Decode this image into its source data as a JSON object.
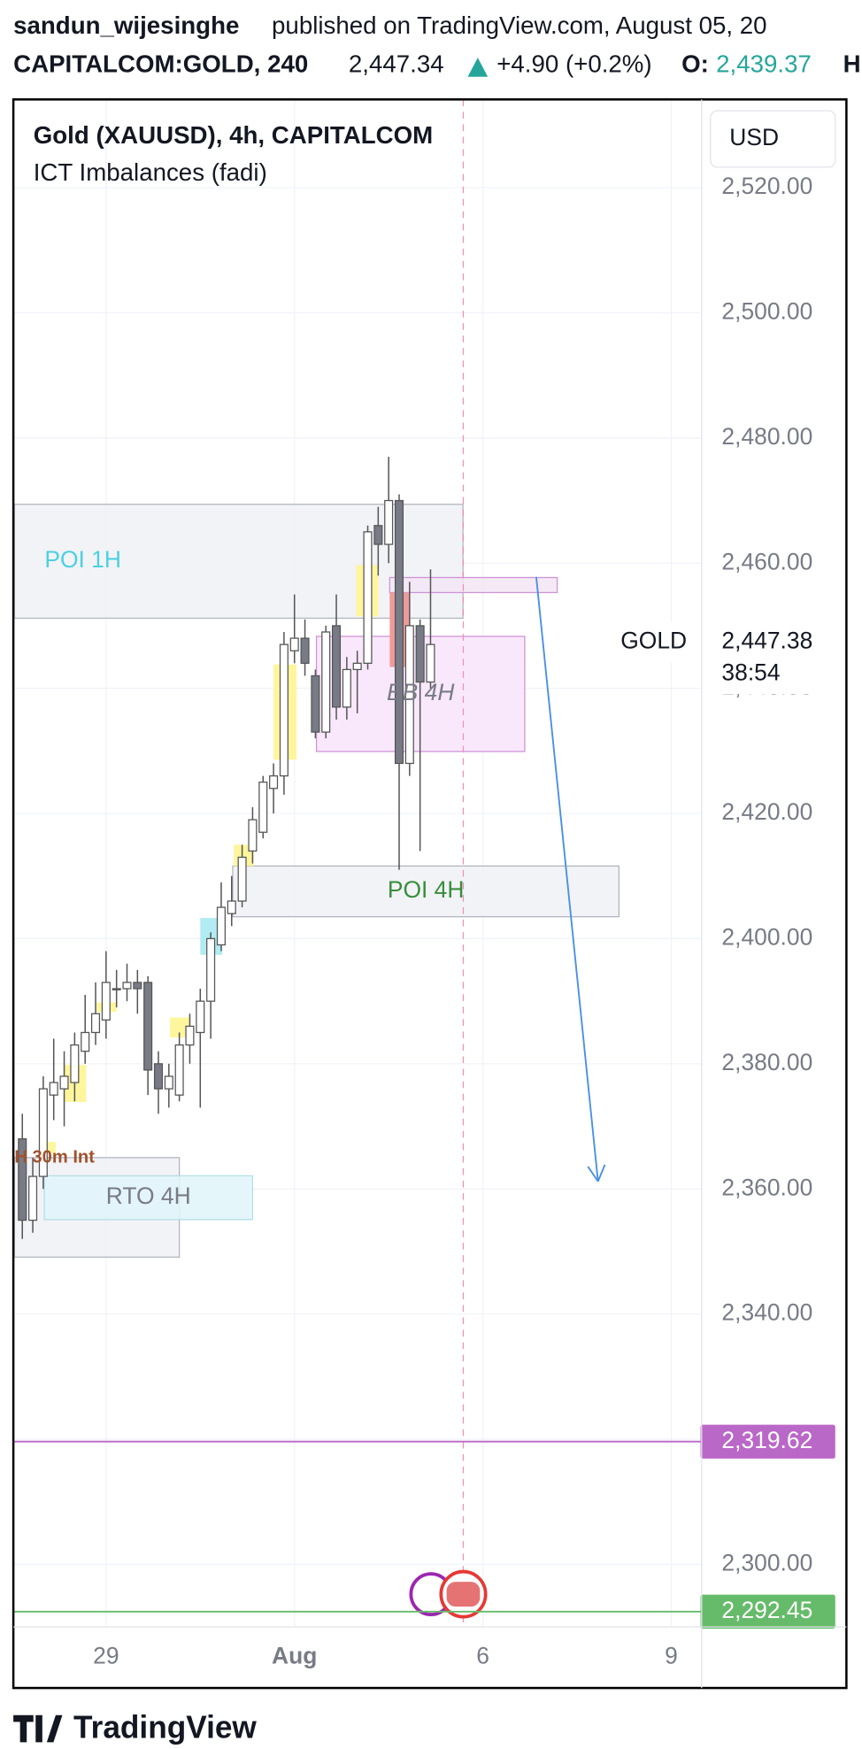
{
  "header": {
    "author": "sandun_wijesinghe",
    "published": "published on TradingView.com, August 05, 20",
    "symbol": "CAPITALCOM:GOLD, 240",
    "last": "2,447.34",
    "change": "+4.90 (+0.2%)",
    "open_label": "O:",
    "open": "2,439.37",
    "high_label": "H"
  },
  "chart_data": {
    "type": "candlestick",
    "title": "Gold (XAUUSD), 4h, CAPITALCOM",
    "subtitle": "ICT Imbalances (fadi)",
    "currency": "USD",
    "symbol_tag": "GOLD",
    "price_tag": {
      "value": 2447.38,
      "label": "2,447.38"
    },
    "countdown": "38:54",
    "open": [
      2368,
      2355,
      2362,
      2375,
      2376,
      2377,
      2382,
      2385,
      2387,
      2392,
      2392,
      2393,
      2393,
      2380,
      2376,
      2375,
      2383,
      2385,
      2390,
      2399,
      2404,
      2406,
      2414,
      2417,
      2424,
      2426,
      2446,
      2448,
      2442,
      2433,
      2450,
      2437,
      2443,
      2444,
      2466,
      2463,
      2470,
      2428,
      2450,
      2441
    ],
    "high": [
      2372,
      2365,
      2378,
      2384,
      2382,
      2385,
      2391,
      2393,
      2398,
      2395,
      2396,
      2395,
      2394,
      2382,
      2380,
      2385,
      2388,
      2392,
      2401,
      2409,
      2410,
      2415,
      2421,
      2426,
      2428,
      2449,
      2455,
      2451,
      2443,
      2450,
      2455,
      2445,
      2446,
      2466,
      2469,
      2477,
      2471,
      2457,
      2451,
      2459
    ],
    "low": [
      2352,
      2353,
      2360,
      2371,
      2370,
      2374,
      2380,
      2383,
      2384,
      2389,
      2390,
      2388,
      2375,
      2372,
      2373,
      2374,
      2380,
      2373,
      2384,
      2398,
      2402,
      2405,
      2412,
      2416,
      2420,
      2423,
      2444,
      2442,
      2432,
      2432,
      2435,
      2435,
      2436,
      2443,
      2458,
      2460,
      2411,
      2426,
      2414,
      2440
    ],
    "close": [
      2355,
      2362,
      2376,
      2377,
      2378,
      2383,
      2385,
      2388,
      2393,
      2392,
      2393,
      2392,
      2379,
      2376,
      2378,
      2383,
      2386,
      2390,
      2400,
      2405,
      2406,
      2413,
      2419,
      2425,
      2426,
      2447,
      2448,
      2444,
      2433,
      2449,
      2437,
      2443,
      2444,
      2465,
      2463,
      2470,
      2428,
      2450,
      2441,
      2447
    ],
    "up_color": "#ffffff",
    "down_color": "#787b86",
    "wick_color": "#555555",
    "xlim": [
      -0.75,
      64.9
    ],
    "xticks": [
      {
        "value": 8,
        "label": "29"
      },
      {
        "value": 26,
        "label": "Aug"
      },
      {
        "value": 44,
        "label": "6"
      },
      {
        "value": 62,
        "label": "9"
      }
    ],
    "ylim": [
      2290,
      2534.1
    ],
    "yticks": [
      {
        "value": 2300,
        "label": "2,300.00"
      },
      {
        "value": 2320,
        "label": "2,320.00"
      },
      {
        "value": 2340,
        "label": "2,340.00"
      },
      {
        "value": 2360,
        "label": "2,360.00"
      },
      {
        "value": 2380,
        "label": "2,380.00"
      },
      {
        "value": 2400,
        "label": "2,400.00"
      },
      {
        "value": 2420,
        "label": "2,420.00"
      },
      {
        "value": 2440,
        "label": "2,440.00"
      },
      {
        "value": 2460,
        "label": "2,460.00"
      },
      {
        "value": 2480,
        "label": "2,480.00"
      },
      {
        "value": 2500,
        "label": "2,500.00"
      },
      {
        "value": 2520,
        "label": "2,520.00"
      }
    ],
    "grid": true,
    "zones": [
      {
        "label": "POI 1H",
        "x": [
          -0.75,
          42.1
        ],
        "y": [
          2451.2,
          2469.4
        ],
        "fill": "#f0f1f4",
        "stroke": "#b2b5be",
        "label_color": "#4dd0e1"
      },
      {
        "x": [
          35.1,
          51.1
        ],
        "y": [
          2455.3,
          2457.7
        ],
        "fill": "#f3e5f5",
        "stroke": "#ce93d8"
      },
      {
        "label": "BB 4H",
        "x": [
          28.1,
          48
        ],
        "y": [
          2429.9,
          2448.3
        ],
        "fill": "#f8e4fa",
        "stroke": "#ce93d8",
        "label_color": "#787b86"
      },
      {
        "label": "POI 4H",
        "x": [
          20.1,
          57
        ],
        "y": [
          2403.5,
          2411.6
        ],
        "fill": "#f0f1f4",
        "stroke": "#b2b5be",
        "label_color": "#388e3c"
      },
      {
        "label": "H 30m Int",
        "x": [
          -0.75,
          15
        ],
        "y": [
          2349.1,
          2365
        ],
        "fill": "#f0f1f4",
        "stroke": "#b2b5be",
        "label_color": "#a0522d"
      },
      {
        "label": "RTO 4H",
        "x": [
          2.1,
          22
        ],
        "y": [
          2355.1,
          2362.1
        ],
        "fill": "#e0f5fa",
        "stroke": "#b2dfe8",
        "label_color": "#787b86"
      }
    ],
    "imbalances": [
      {
        "x": [
          31.9,
          34
        ],
        "y": [
          2451.5,
          2459.7
        ],
        "color": "#fff59d"
      },
      {
        "x": [
          24,
          26.2
        ],
        "y": [
          2428.6,
          2443.8
        ],
        "color": "#fff59d"
      },
      {
        "x": [
          20.2,
          22.1
        ],
        "y": [
          2411.6,
          2415
        ],
        "color": "#fff59d"
      },
      {
        "x": [
          14.1,
          16
        ],
        "y": [
          2384.2,
          2387.4
        ],
        "color": "#fff59d"
      },
      {
        "x": [
          7.1,
          9
        ],
        "y": [
          2388.3,
          2389.8
        ],
        "color": "#fff59d"
      },
      {
        "x": [
          4,
          6.1
        ],
        "y": [
          2373.9,
          2379.8
        ],
        "color": "#fff59d"
      },
      {
        "x": [
          2.1,
          3.2
        ],
        "y": [
          2365.7,
          2367.5
        ],
        "color": "#fff59d"
      },
      {
        "x": [
          35.1,
          37
        ],
        "y": [
          2443.4,
          2455.3
        ],
        "color": "#ef9a9a"
      },
      {
        "x": [
          17,
          19.1
        ],
        "y": [
          2397.4,
          2403.3
        ],
        "color": "#b2ebf2"
      }
    ],
    "levels": [
      {
        "value": 2319.62,
        "label": "2,319.62",
        "color": "#ba68c8"
      },
      {
        "value": 2292.45,
        "label": "2,292.45",
        "color": "#66bb6a"
      }
    ],
    "arrow": {
      "x": [
        49.1,
        55
      ],
      "y": [
        2457.8,
        2361.2
      ],
      "color": "#4a90e2"
    }
  },
  "footer": {
    "brand": "TradingView"
  }
}
